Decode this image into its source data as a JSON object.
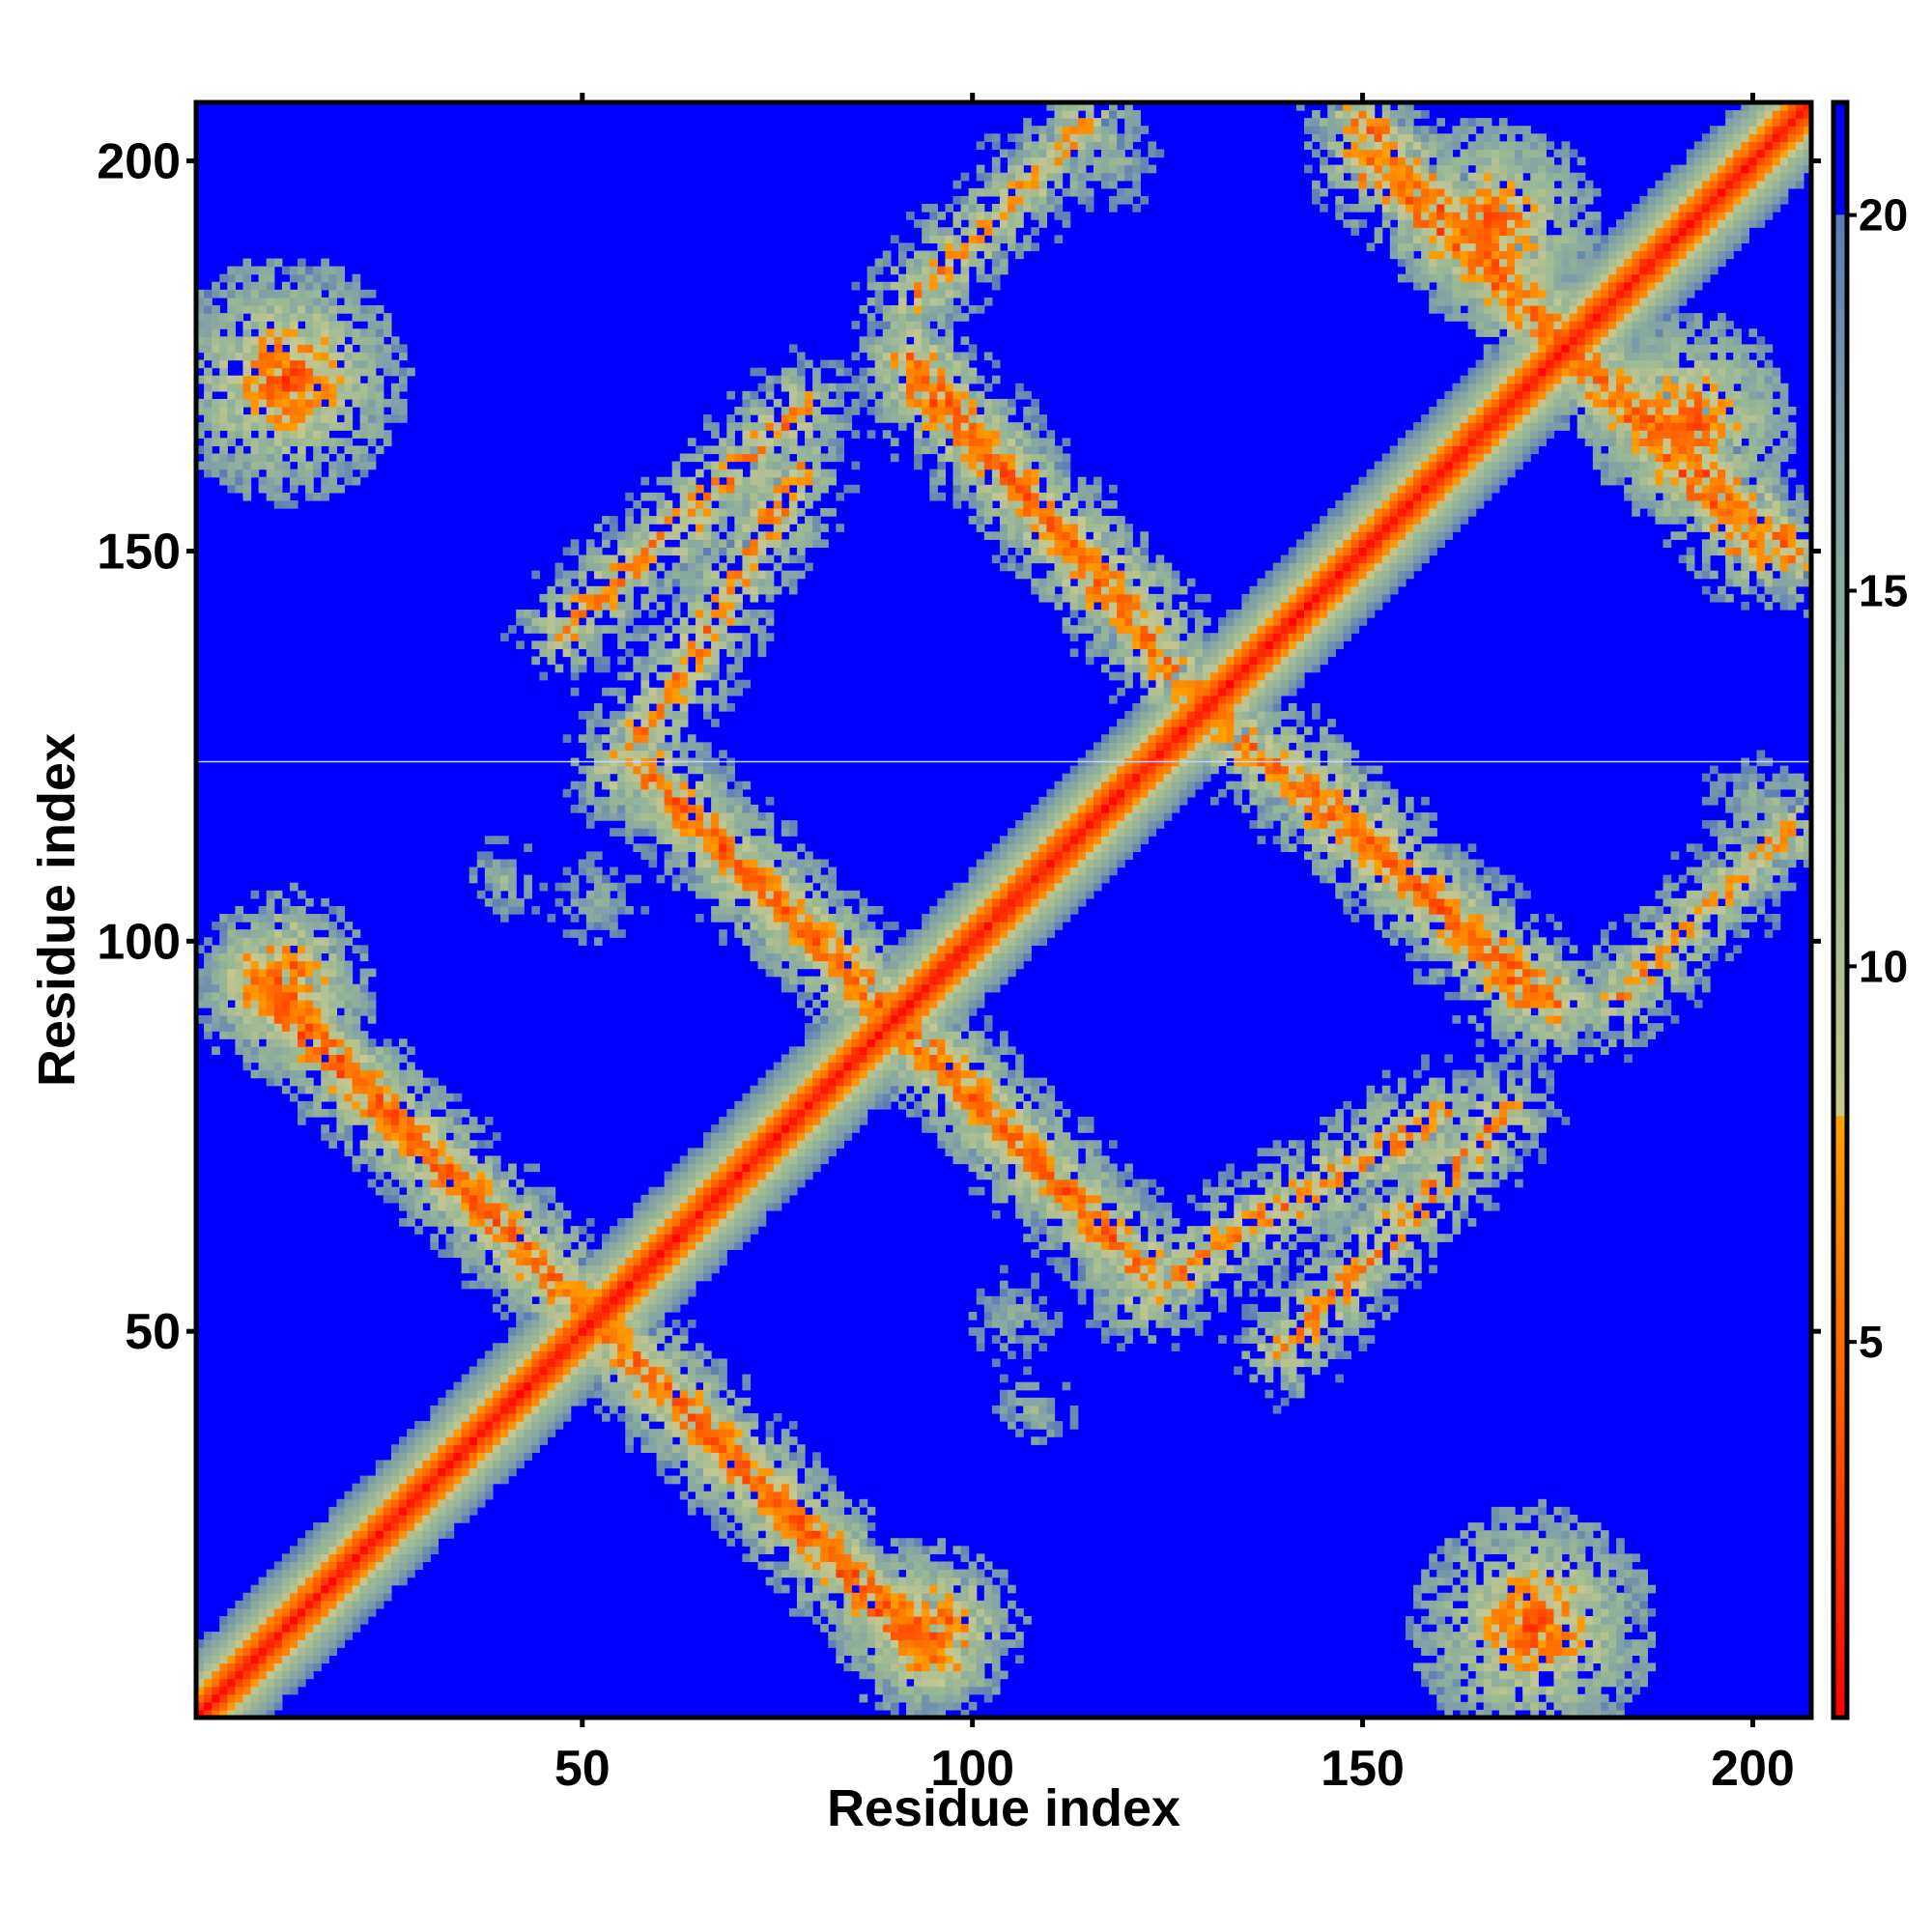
{
  "chart_data": {
    "type": "heatmap",
    "title": "",
    "xlabel": "Residue index",
    "ylabel": "Residue index",
    "xlim": [
      1,
      207
    ],
    "ylim": [
      1,
      207
    ],
    "x_ticks": [
      50,
      100,
      150,
      200
    ],
    "y_ticks": [
      50,
      100,
      150,
      200
    ],
    "x_tick_labels": [
      "50",
      "100",
      "150",
      "200"
    ],
    "y_tick_labels": [
      "50",
      "100",
      "150",
      "200"
    ],
    "colorbar": {
      "range": [
        0,
        21.5
      ],
      "ticks": [
        5,
        10,
        15,
        20
      ],
      "tick_labels": [
        "5",
        "10",
        "15",
        "20"
      ],
      "scale": [
        {
          "value": 0,
          "color": "#ff0000"
        },
        {
          "value": 4,
          "color": "#ff5a00"
        },
        {
          "value": 8,
          "color": "#ffa000"
        },
        {
          "value": 8.01,
          "color": "#c8c890"
        },
        {
          "value": 12,
          "color": "#9ab894"
        },
        {
          "value": 17,
          "color": "#7fa0a8"
        },
        {
          "value": 20,
          "color": "#5a7cb4"
        },
        {
          "value": 20.01,
          "color": "#0000ff"
        }
      ]
    },
    "value_meaning": "pairwise residue distance; cells at or above 20 shown as background blue",
    "diagonal": {
      "from": 1,
      "to": 207,
      "value_at_zero_offset": 0
    },
    "band_features": [
      {
        "kind": "antidiagonal",
        "from": [
          8,
          96
        ],
        "to": [
          94,
          8
        ],
        "min_value": 5
      },
      {
        "kind": "antidiagonal",
        "from": [
          58,
          122
        ],
        "to": [
          118,
          62
        ],
        "min_value": 5
      },
      {
        "kind": "antidiagonal",
        "from": [
          92,
          175
        ],
        "to": [
          128,
          132
        ],
        "min_value": 5
      },
      {
        "kind": "antidiagonal",
        "from": [
          142,
          122
        ],
        "to": [
          172,
          92
        ],
        "min_value": 5
      },
      {
        "kind": "antidiagonal",
        "from": [
          150,
          205
        ],
        "to": [
          200,
          150
        ],
        "min_value": 5
      },
      {
        "kind": "diagonal",
        "from": [
          55,
          122
        ],
        "to": [
          78,
          160
        ],
        "min_value": 6
      },
      {
        "kind": "diagonal",
        "from": [
          140,
          48
        ],
        "to": [
          168,
          78
        ],
        "min_value": 6
      },
      {
        "kind": "diagonal",
        "from": [
          92,
          182
        ],
        "to": [
          115,
          205
        ],
        "min_value": 7
      },
      {
        "kind": "spot",
        "center": [
          12,
          172
        ],
        "radius": 14,
        "min_value": 4
      },
      {
        "kind": "spot",
        "center": [
          12,
          96
        ],
        "radius": 10,
        "min_value": 4
      },
      {
        "kind": "spot",
        "center": [
          93,
          12
        ],
        "radius": 10,
        "min_value": 4
      },
      {
        "kind": "spot",
        "center": [
          172,
          12
        ],
        "radius": 14,
        "min_value": 4
      },
      {
        "kind": "spot",
        "center": [
          167,
          192
        ],
        "radius": 12,
        "min_value": 4
      },
      {
        "kind": "spot",
        "center": [
          192,
          167
        ],
        "radius": 12,
        "min_value": 4
      },
      {
        "kind": "spot",
        "center": [
          105,
          52
        ],
        "radius": 9,
        "min_value": 13
      },
      {
        "kind": "spot",
        "center": [
          40,
          108
        ],
        "radius": 8,
        "min_value": 13
      },
      {
        "kind": "spot",
        "center": [
          118,
          200
        ],
        "radius": 9,
        "min_value": 13
      },
      {
        "kind": "spot",
        "center": [
          200,
          110
        ],
        "radius": 8,
        "min_value": 13
      }
    ],
    "grid": false,
    "legend": "colorbar-right"
  }
}
